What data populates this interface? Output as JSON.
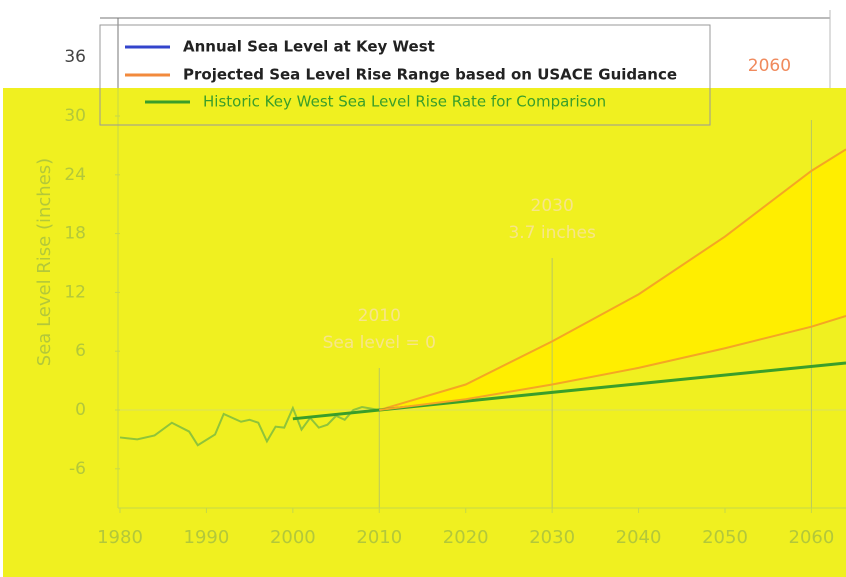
{
  "chart_data": {
    "type": "line",
    "y_axis_label": "Sea Level Rise (inches)",
    "xlim": [
      1980,
      2064
    ],
    "ylim": [
      -10,
      40
    ],
    "xticks": [
      1980,
      1990,
      2000,
      2010,
      2020,
      2030,
      2040,
      2050,
      2060
    ],
    "yticks": [
      -6,
      0,
      6,
      12,
      18,
      24,
      30,
      36
    ],
    "series": [
      {
        "name": "Annual Sea Level at Key West",
        "color": "#3344cc",
        "plot_color": "#8fc43a",
        "x": [
          1980,
          1982,
          1984,
          1986,
          1988,
          1989,
          1991,
          1992,
          1994,
          1995,
          1996,
          1997,
          1998,
          1999,
          2000,
          2001,
          2002,
          2003,
          2004,
          2005,
          2006,
          2007,
          2008,
          2010
        ],
        "values": [
          -2.8,
          -3,
          -2.6,
          -1.3,
          -2.2,
          -3.6,
          -2.5,
          -0.4,
          -1.2,
          -1,
          -1.3,
          -3.2,
          -1.7,
          -1.8,
          0.2,
          -2,
          -0.8,
          -1.8,
          -1.5,
          -0.6,
          -1,
          0,
          0.3,
          0
        ]
      },
      {
        "name": "Projected Sea Level Rise Range based on USACE Guidance",
        "color": "#f28a3c",
        "plot_color": "#f5a623",
        "x": [
          2010,
          2020,
          2030,
          2040,
          2050,
          2060,
          2064
        ],
        "values": [
          0,
          2.6,
          7,
          11.8,
          17.7,
          24.4,
          26.6
        ]
      },
      {
        "name": "Historic Key West Sea Level Rise Rate for Comparison",
        "color": "#3a9e2a",
        "plot_color": "#3a9e2a",
        "x": [
          2000,
          2030,
          2064
        ],
        "values": [
          -0.9,
          1.8,
          4.8
        ]
      },
      {
        "name": null,
        "color": "#f5a623",
        "plot_color": "#f5a623",
        "x": [
          2010,
          2020,
          2030,
          2040,
          2050,
          2060,
          2064
        ],
        "values": [
          0,
          1.1,
          2.6,
          4.3,
          6.3,
          8.5,
          9.6
        ]
      }
    ],
    "fill_between": [
      1,
      3
    ],
    "fill_color": "#ffee00",
    "annotations": [
      {
        "x": 2010,
        "lines": [
          "2010",
          "Sea level = 0"
        ]
      },
      {
        "x": 2030,
        "lines": [
          "2030",
          "3.7 inches"
        ]
      },
      {
        "x": 2060,
        "lines": [
          "2060"
        ]
      }
    ]
  }
}
